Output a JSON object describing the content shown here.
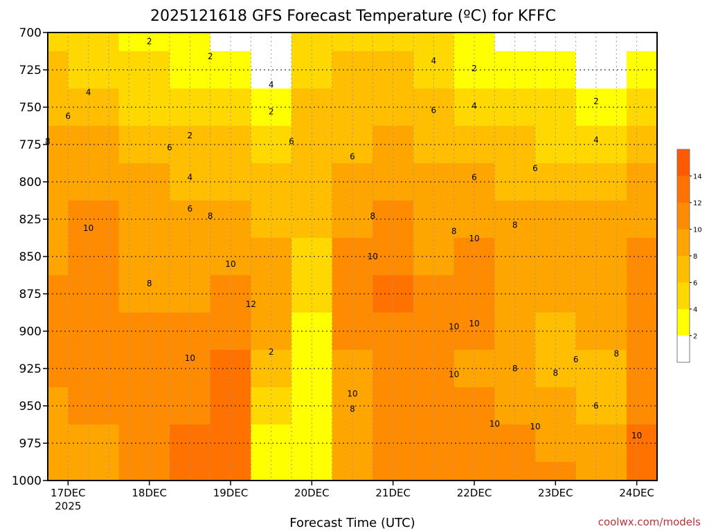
{
  "chart_data": {
    "type": "heatmap",
    "title": "2025121618 GFS Forecast Temperature (ºC) for KFFC",
    "xlabel": "Forecast Time (UTC)",
    "ylabel": "",
    "x_ticks": [
      "17DEC",
      "18DEC",
      "19DEC",
      "20DEC",
      "21DEC",
      "22DEC",
      "23DEC",
      "24DEC"
    ],
    "x_year": "2025",
    "x_range": [
      "2025-12-16T18:00Z",
      "2025-12-24T06:00Z"
    ],
    "y_ticks": [
      700,
      725,
      750,
      775,
      800,
      825,
      850,
      875,
      900,
      925,
      950,
      975,
      1000
    ],
    "ylim": [
      1000,
      700
    ],
    "grid": true,
    "colorbar": {
      "levels": [
        0,
        2,
        4,
        6,
        8,
        10,
        12,
        14,
        16
      ],
      "labels": [
        "2",
        "4",
        "6",
        "8",
        "10",
        "12",
        "14"
      ],
      "colors": [
        "#ffffff",
        "#ffff00",
        "#ffd800",
        "#ffbf00",
        "#ffa500",
        "#ff8c00",
        "#ff7200",
        "#ff5a00"
      ]
    },
    "series": [
      {
        "name": "",
        "x": "2025-12-16T18:00Z",
        "values": [
          5,
          6,
          7,
          8,
          9,
          9,
          9,
          10,
          10,
          10,
          9,
          9,
          8
        ]
      },
      {
        "name": "",
        "x": "2025-12-17T06:00Z",
        "values": [
          4,
          5,
          6,
          8,
          9,
          10,
          11,
          11,
          10,
          10,
          10,
          9,
          9
        ]
      },
      {
        "name": "",
        "x": "2025-12-18T00:00Z",
        "values": [
          3,
          4,
          5,
          7,
          8,
          8,
          9,
          9,
          10,
          10,
          10,
          11,
          11
        ]
      },
      {
        "name": "",
        "x": "2025-12-18T12:00Z",
        "values": [
          2,
          3,
          5,
          6,
          7,
          8,
          8,
          9,
          10,
          11,
          11,
          12,
          12
        ]
      },
      {
        "name": "",
        "x": "2025-12-19T00:00Z",
        "values": [
          1,
          2,
          4,
          6,
          7,
          8,
          9,
          10,
          11,
          12,
          13,
          13,
          13
        ]
      },
      {
        "name": "",
        "x": "2025-12-19T12:00Z",
        "values": [
          0,
          1,
          3,
          5,
          6,
          7,
          8,
          9,
          8,
          6,
          4,
          3,
          2
        ]
      },
      {
        "name": "",
        "x": "2025-12-20T00:00Z",
        "values": [
          4,
          5,
          6,
          6,
          6,
          6,
          5,
          4,
          3,
          3,
          3,
          3,
          3
        ]
      },
      {
        "name": "",
        "x": "2025-12-20T12:00Z",
        "values": [
          5,
          6,
          6,
          7,
          8,
          9,
          10,
          10,
          10,
          9,
          8,
          8,
          9
        ]
      },
      {
        "name": "",
        "x": "2025-12-21T00:00Z",
        "values": [
          5,
          6,
          7,
          8,
          9,
          10,
          11,
          12,
          11,
          10,
          10,
          10,
          11
        ]
      },
      {
        "name": "",
        "x": "2025-12-21T12:00Z",
        "values": [
          4,
          5,
          6,
          7,
          8,
          8,
          9,
          10,
          10,
          10,
          10,
          10,
          11
        ]
      },
      {
        "name": "",
        "x": "2025-12-22T00:00Z",
        "values": [
          3,
          3,
          5,
          7,
          8,
          9,
          10,
          10,
          10,
          9,
          10,
          11,
          11
        ]
      },
      {
        "name": "",
        "x": "2025-12-22T12:00Z",
        "values": [
          1,
          3,
          4,
          6,
          7,
          8,
          9,
          9,
          9,
          8,
          9,
          10,
          10
        ]
      },
      {
        "name": "",
        "x": "2025-12-23T00:00Z",
        "values": [
          0,
          2,
          4,
          5,
          7,
          8,
          8,
          8,
          7,
          7,
          8,
          9,
          10
        ]
      },
      {
        "name": "",
        "x": "2025-12-23T12:00Z",
        "values": [
          0,
          1,
          3,
          5,
          7,
          8,
          9,
          9,
          8,
          7,
          7,
          9,
          9
        ]
      },
      {
        "name": "",
        "x": "2025-12-24T06:00Z",
        "values": [
          0,
          2,
          4,
          6,
          8,
          9,
          10,
          11,
          11,
          11,
          11,
          12,
          12
        ]
      }
    ],
    "contour_labels": [
      {
        "text": "2",
        "x": "2025-12-18T00:00Z",
        "p": 706
      },
      {
        "text": "2",
        "x": "2025-12-18T18:00Z",
        "p": 716
      },
      {
        "text": "4",
        "x": "2025-12-19T12:00Z",
        "p": 735
      },
      {
        "text": "2",
        "x": "2025-12-19T12:00Z",
        "p": 753
      },
      {
        "text": "4",
        "x": "2025-12-21T12:00Z",
        "p": 719
      },
      {
        "text": "2",
        "x": "2025-12-22T00:00Z",
        "p": 724
      },
      {
        "text": "2",
        "x": "2025-12-23T12:00Z",
        "p": 746
      },
      {
        "text": "4",
        "x": "2025-12-17T06:00Z",
        "p": 740
      },
      {
        "text": "6",
        "x": "2025-12-17T00:00Z",
        "p": 756
      },
      {
        "text": "8",
        "x": "2025-12-16T18:00Z",
        "p": 773
      },
      {
        "text": "6",
        "x": "2025-12-18T06:00Z",
        "p": 777
      },
      {
        "text": "2",
        "x": "2025-12-18T12:00Z",
        "p": 769
      },
      {
        "text": "6",
        "x": "2025-12-19T18:00Z",
        "p": 773
      },
      {
        "text": "6",
        "x": "2025-12-21T12:00Z",
        "p": 752
      },
      {
        "text": "6",
        "x": "2025-12-20T12:00Z",
        "p": 783
      },
      {
        "text": "4",
        "x": "2025-12-22T00:00Z",
        "p": 749
      },
      {
        "text": "4",
        "x": "2025-12-23T12:00Z",
        "p": 772
      },
      {
        "text": "4",
        "x": "2025-12-18T12:00Z",
        "p": 797
      },
      {
        "text": "6",
        "x": "2025-12-22T00:00Z",
        "p": 797
      },
      {
        "text": "6",
        "x": "2025-12-22T18:00Z",
        "p": 791
      },
      {
        "text": "10",
        "x": "2025-12-17T06:00Z",
        "p": 831
      },
      {
        "text": "6",
        "x": "2025-12-18T12:00Z",
        "p": 818
      },
      {
        "text": "8",
        "x": "2025-12-18T18:00Z",
        "p": 823
      },
      {
        "text": "8",
        "x": "2025-12-20T18:00Z",
        "p": 823
      },
      {
        "text": "8",
        "x": "2025-12-21T18:00Z",
        "p": 833
      },
      {
        "text": "8",
        "x": "2025-12-22T12:00Z",
        "p": 829
      },
      {
        "text": "10",
        "x": "2025-12-22T00:00Z",
        "p": 838
      },
      {
        "text": "10",
        "x": "2025-12-19T00:00Z",
        "p": 855
      },
      {
        "text": "10",
        "x": "2025-12-20T18:00Z",
        "p": 850
      },
      {
        "text": "8",
        "x": "2025-12-18T00:00Z",
        "p": 868
      },
      {
        "text": "12",
        "x": "2025-12-19T06:00Z",
        "p": 882
      },
      {
        "text": "10",
        "x": "2025-12-21T18:00Z",
        "p": 897
      },
      {
        "text": "10",
        "x": "2025-12-22T00:00Z",
        "p": 895
      },
      {
        "text": "10",
        "x": "2025-12-18T12:00Z",
        "p": 918
      },
      {
        "text": "2",
        "x": "2025-12-19T12:00Z",
        "p": 914
      },
      {
        "text": "10",
        "x": "2025-12-20T12:00Z",
        "p": 942
      },
      {
        "text": "8",
        "x": "2025-12-20T12:00Z",
        "p": 952
      },
      {
        "text": "10",
        "x": "2025-12-21T18:00Z",
        "p": 929
      },
      {
        "text": "8",
        "x": "2025-12-22T12:00Z",
        "p": 925
      },
      {
        "text": "8",
        "x": "2025-12-23T00:00Z",
        "p": 928
      },
      {
        "text": "6",
        "x": "2025-12-23T06:00Z",
        "p": 919
      },
      {
        "text": "8",
        "x": "2025-12-23T18:00Z",
        "p": 915
      },
      {
        "text": "6",
        "x": "2025-12-23T12:00Z",
        "p": 950
      },
      {
        "text": "10",
        "x": "2025-12-22T06:00Z",
        "p": 962
      },
      {
        "text": "10",
        "x": "2025-12-22T18:00Z",
        "p": 964
      },
      {
        "text": "10",
        "x": "2025-12-24T00:00Z",
        "p": 970
      }
    ]
  },
  "credit": "coolwx.com/models"
}
